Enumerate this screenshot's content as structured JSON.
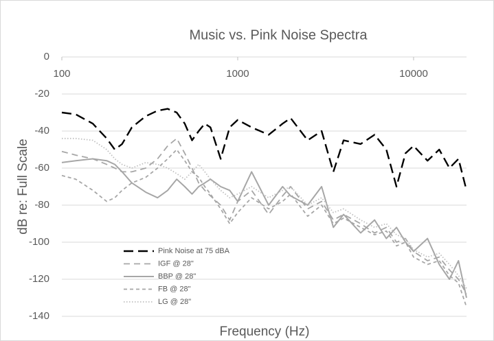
{
  "chart_data": {
    "type": "line",
    "title": "Music vs. Pink Noise Spectra",
    "x_label": "Frequency (Hz)",
    "y_label": "dB re: Full Scale",
    "x_scale": "log",
    "xlim": [
      100,
      20000
    ],
    "xticks": [
      100,
      1000,
      10000
    ],
    "ylim": [
      -140,
      0
    ],
    "yticks": [
      0,
      -20,
      -40,
      -60,
      -80,
      -100,
      -120,
      -140
    ],
    "grid": true,
    "legend": "lower left",
    "x": [
      100,
      120,
      150,
      180,
      200,
      220,
      250,
      300,
      350,
      400,
      450,
      500,
      550,
      600,
      650,
      700,
      800,
      900,
      1000,
      1200,
      1500,
      1800,
      2000,
      2500,
      3000,
      3500,
      4000,
      5000,
      6000,
      7000,
      8000,
      9000,
      10000,
      12000,
      14000,
      16000,
      18000,
      20000
    ],
    "series": [
      {
        "name": "Pink Noise at 75 dBA",
        "color": "#000000",
        "line_style": "long-dash",
        "values": [
          -30,
          -31,
          -36,
          -44,
          -50,
          -47,
          -38,
          -32,
          -29,
          -28,
          -30,
          -36,
          -45,
          -40,
          -36,
          -38,
          -55,
          -38,
          -34,
          -38,
          -42,
          -36,
          -33,
          -45,
          -40,
          -62,
          -45,
          -47,
          -42,
          -50,
          -70,
          -52,
          -48,
          -56,
          -50,
          -60,
          -55,
          -72
        ]
      },
      {
        "name": "IGF @ 28\"",
        "color": "#a6a6a6",
        "line_style": "dash",
        "values": [
          -51,
          -53,
          -55,
          -58,
          -60,
          -62,
          -62,
          -60,
          -55,
          -48,
          -44,
          -52,
          -60,
          -68,
          -72,
          -75,
          -80,
          -88,
          -78,
          -72,
          -85,
          -75,
          -70,
          -82,
          -78,
          -88,
          -85,
          -90,
          -95,
          -92,
          -100,
          -98,
          -105,
          -110,
          -108,
          -115,
          -120,
          -128
        ]
      },
      {
        "name": "BBP @ 28\"",
        "color": "#a6a6a6",
        "line_style": "solid",
        "values": [
          -57,
          -56,
          -55,
          -56,
          -58,
          -62,
          -68,
          -73,
          -76,
          -72,
          -66,
          -70,
          -74,
          -70,
          -68,
          -66,
          -70,
          -72,
          -78,
          -62,
          -80,
          -70,
          -75,
          -80,
          -70,
          -92,
          -85,
          -95,
          -88,
          -98,
          -92,
          -100,
          -105,
          -98,
          -112,
          -120,
          -110,
          -130
        ]
      },
      {
        "name": "FB @ 28\"",
        "color": "#a6a6a6",
        "line_style": "short-dash",
        "values": [
          -64,
          -66,
          -72,
          -78,
          -76,
          -72,
          -68,
          -65,
          -60,
          -55,
          -50,
          -56,
          -62,
          -65,
          -70,
          -74,
          -82,
          -90,
          -84,
          -76,
          -82,
          -78,
          -74,
          -86,
          -80,
          -90,
          -87,
          -92,
          -96,
          -94,
          -102,
          -100,
          -108,
          -112,
          -110,
          -118,
          -122,
          -135
        ]
      },
      {
        "name": "LG @ 28\"",
        "color": "#bfbfbf",
        "line_style": "dotted",
        "values": [
          -44,
          -44,
          -45,
          -50,
          -55,
          -58,
          -60,
          -57,
          -58,
          -60,
          -63,
          -66,
          -62,
          -58,
          -62,
          -66,
          -72,
          -76,
          -74,
          -70,
          -76,
          -72,
          -70,
          -80,
          -76,
          -84,
          -82,
          -88,
          -92,
          -90,
          -96,
          -98,
          -104,
          -108,
          -106,
          -112,
          -118,
          -125
        ]
      }
    ]
  }
}
